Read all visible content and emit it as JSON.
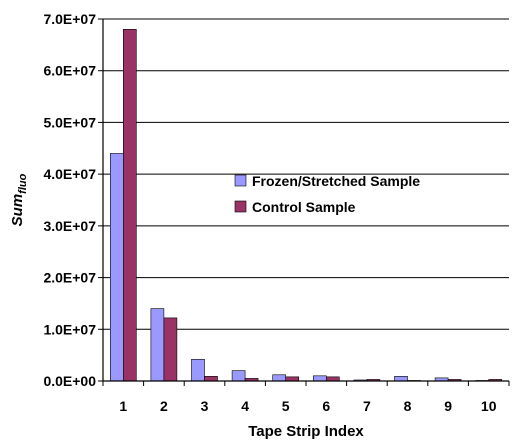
{
  "chart_data": {
    "type": "bar",
    "xlabel": "Tape Strip Index",
    "ylabel": {
      "main": "Sum",
      "sub": "fluo"
    },
    "categories": [
      "1",
      "2",
      "3",
      "4",
      "5",
      "6",
      "7",
      "8",
      "9",
      "10"
    ],
    "ylim": [
      0,
      70000000
    ],
    "yticks": [
      {
        "value": 0,
        "label": "0.0E+00"
      },
      {
        "value": 10000000,
        "label": "1.0E+07"
      },
      {
        "value": 20000000,
        "label": "2.0E+07"
      },
      {
        "value": 30000000,
        "label": "3.0E+07"
      },
      {
        "value": 40000000,
        "label": "4.0E+07"
      },
      {
        "value": 50000000,
        "label": "5.0E+07"
      },
      {
        "value": 60000000,
        "label": "6.0E+07"
      },
      {
        "value": 70000000,
        "label": "7.0E+07"
      }
    ],
    "grid": true,
    "legend_position": "center-right",
    "series": [
      {
        "name": "Frozen/Stretched Sample",
        "color": "#9999FF",
        "values": [
          44000000,
          14000000,
          4200000,
          2000000,
          1200000,
          1000000,
          200000,
          900000,
          600000,
          100000
        ]
      },
      {
        "name": "Control Sample",
        "color": "#993366",
        "values": [
          68000000,
          12200000,
          900000,
          500000,
          800000,
          800000,
          300000,
          100000,
          300000,
          300000
        ]
      }
    ]
  }
}
